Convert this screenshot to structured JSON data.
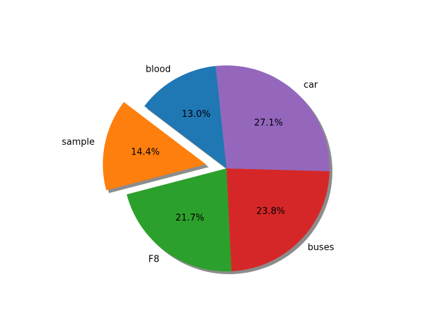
{
  "chart_data": {
    "type": "pie",
    "slices": [
      {
        "label": "blood",
        "value": 13.0,
        "pct_label": "13.0%",
        "color": "#1f77b4",
        "exploded": false
      },
      {
        "label": "sample",
        "value": 14.4,
        "pct_label": "14.4%",
        "color": "#ff7f0e",
        "exploded": true
      },
      {
        "label": "F8",
        "value": 21.7,
        "pct_label": "21.7%",
        "color": "#2ca02c",
        "exploded": false
      },
      {
        "label": "buses",
        "value": 23.8,
        "pct_label": "23.8%",
        "color": "#d62728",
        "exploded": false
      },
      {
        "label": "car",
        "value": 27.1,
        "pct_label": "27.1%",
        "color": "#9467bd",
        "exploded": false
      }
    ],
    "start_angle_deg": 96,
    "direction": "counterclockwise",
    "shadow": true,
    "legend": "none",
    "title": ""
  }
}
